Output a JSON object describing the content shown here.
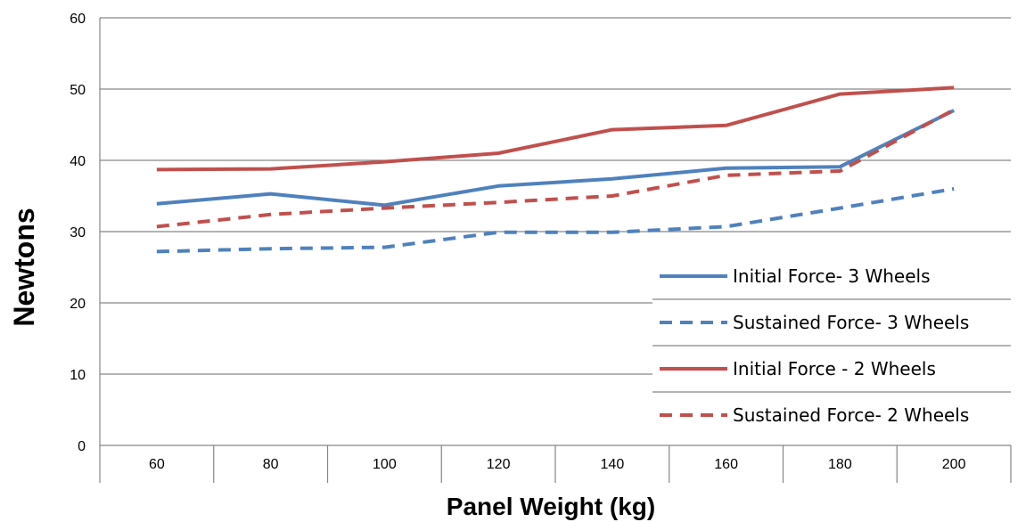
{
  "chart_data": {
    "type": "line",
    "xlabel": "Panel Weight (kg)",
    "ylabel": "Newtons",
    "categories": [
      "60",
      "80",
      "100",
      "120",
      "140",
      "160",
      "180",
      "200"
    ],
    "ylim": [
      0,
      60
    ],
    "yticks": [
      0,
      10,
      20,
      30,
      40,
      50,
      60
    ],
    "grid": true,
    "legend_position": "bottom-right",
    "series": [
      {
        "name": "Initial Force- 3 Wheels",
        "values": [
          33.9,
          35.3,
          33.7,
          36.4,
          37.4,
          38.9,
          39.1,
          47.0
        ],
        "color": "#4f81bd",
        "style": "solid"
      },
      {
        "name": "Sustained Force- 3 Wheels",
        "values": [
          27.2,
          27.6,
          27.8,
          29.9,
          29.9,
          30.7,
          33.3,
          36.0
        ],
        "color": "#4f81bd",
        "style": "dashed"
      },
      {
        "name": "Initial Force - 2 Wheels",
        "values": [
          38.7,
          38.8,
          39.8,
          41.0,
          44.3,
          44.9,
          49.3,
          50.2
        ],
        "color": "#c0504d",
        "style": "solid"
      },
      {
        "name": "Sustained Force- 2 Wheels",
        "values": [
          30.7,
          32.4,
          33.3,
          34.1,
          35.0,
          37.9,
          38.5,
          47.1
        ],
        "color": "#c0504d",
        "style": "dashed"
      }
    ]
  }
}
